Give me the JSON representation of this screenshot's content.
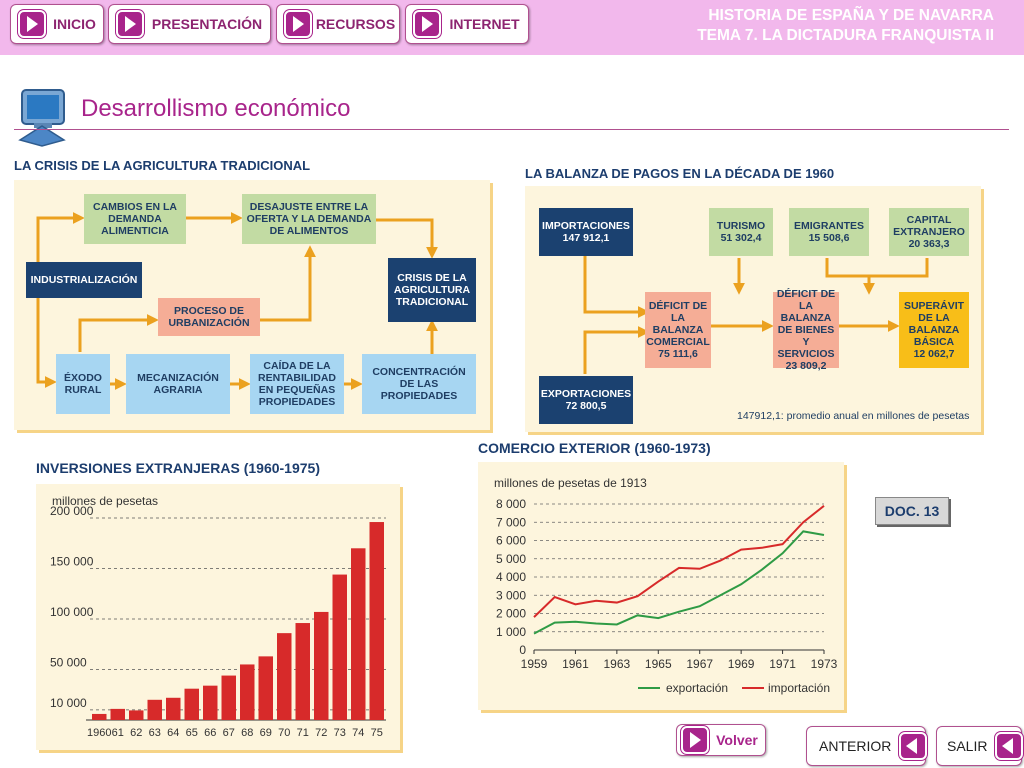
{
  "nav": {
    "inicio": "INICIO",
    "presentacion": "PRESENTACIÓN",
    "recursos": "RECURSOS",
    "internet": "INTERNET"
  },
  "course": {
    "line1": "HISTORIA DE ESPAÑA Y DE NAVARRA",
    "line2": "TEMA 7. LA DICTADURA FRANQUISTA II"
  },
  "page_title": "Desarrollismo económico",
  "crisis": {
    "title": "LA CRISIS DE LA AGRICULTURA TRADICIONAL",
    "cambios": "CAMBIOS EN LA DEMANDA ALIMENTICIA",
    "desajuste": "DESAJUSTE ENTRE LA OFERTA Y LA DEMANDA DE ALIMENTOS",
    "industrializacion": "INDUSTRIALIZACIÓN",
    "proceso": "PROCESO DE URBANIZACIÓN",
    "crisis_box": "CRISIS DE LA AGRICULTURA TRADICIONAL",
    "exodo": "ÉXODO RURAL",
    "mecanizacion": "MECANIZACIÓN AGRARIA",
    "caida": "CAÍDA DE LA RENTABILIDAD EN PEQUEÑAS PROPIEDADES",
    "concentracion": "CONCENTRACIÓN DE LAS PROPIEDADES"
  },
  "balanza": {
    "title": "LA BALANZA DE PAGOS EN LA DÉCADA DE 1960",
    "importaciones": "IMPORTACIONES",
    "importaciones_val": "147 912,1",
    "exportaciones": "EXPORTACIONES",
    "exportaciones_val": "72 800,5",
    "turismo": "TURISMO",
    "turismo_val": "51 302,4",
    "emigrantes": "EMIGRANTES",
    "emigrantes_val": "15 508,6",
    "capital": "CAPITAL EXTRANJERO",
    "capital_val": "20 363,3",
    "deficit_comercial": "DÉFICIT DE LA BALANZA COMERCIAL",
    "deficit_comercial_val": "75 111,6",
    "deficit_bienes": "DÉFICIT DE LA BALANZA DE BIENES Y SERVICIOS",
    "deficit_bienes_val": "23 809,2",
    "superavit": "SUPERÁVIT DE LA BALANZA BÁSICA",
    "superavit_val": "12 062,7",
    "note": "147912,1: promedio anual en millones de pesetas"
  },
  "doc_label": "DOC. 13",
  "bottom": {
    "volver": "Volver",
    "anterior": "ANTERIOR",
    "salir": "SALIR"
  },
  "colors": {
    "accent": "#a8248b",
    "bar": "#d72a2a",
    "export_line": "#2f9b45",
    "import_line": "#d72a2a"
  },
  "chart_data": [
    {
      "type": "bar",
      "title": "INVERSIONES EXTRANJERAS (1960-1975)",
      "ylabel": "millones de pesetas",
      "categories": [
        "1960",
        "61",
        "62",
        "63",
        "64",
        "65",
        "66",
        "67",
        "68",
        "69",
        "70",
        "71",
        "72",
        "73",
        "74",
        "75"
      ],
      "values": [
        6000,
        11000,
        9500,
        20000,
        22000,
        31000,
        34000,
        44000,
        55000,
        63000,
        86000,
        96000,
        107000,
        144000,
        170000,
        196000
      ],
      "yticks": [
        10000,
        50000,
        100000,
        150000,
        200000
      ],
      "ytick_labels": [
        "10 000",
        "50 000",
        "100 000",
        "150 000",
        "200 000"
      ],
      "ylim": [
        0,
        200000
      ],
      "grid": true
    },
    {
      "type": "line",
      "title": "COMERCIO EXTERIOR (1960-1973)",
      "ylabel": "millones de pesetas de 1913",
      "x": [
        1959,
        1960,
        1961,
        1962,
        1963,
        1964,
        1965,
        1966,
        1967,
        1968,
        1969,
        1970,
        1971,
        1972,
        1973
      ],
      "xticks": [
        "1959",
        "1961",
        "1963",
        "1965",
        "1967",
        "1969",
        "1971",
        "1973"
      ],
      "yticks": [
        "0",
        "1 000",
        "2 000",
        "3 000",
        "4 000",
        "5 000",
        "6 000",
        "7 000",
        "8 000"
      ],
      "ylim": [
        0,
        8500
      ],
      "series": [
        {
          "name": "exportación",
          "values": [
            900,
            1500,
            1550,
            1450,
            1400,
            1900,
            1750,
            2100,
            2400,
            3000,
            3600,
            4400,
            5300,
            6500,
            6300
          ]
        },
        {
          "name": "importación",
          "values": [
            1800,
            2900,
            2500,
            2700,
            2600,
            2950,
            3750,
            4500,
            4450,
            4900,
            5500,
            5600,
            5800,
            7000,
            7900
          ]
        }
      ],
      "legend": "bottom",
      "grid": true
    }
  ]
}
